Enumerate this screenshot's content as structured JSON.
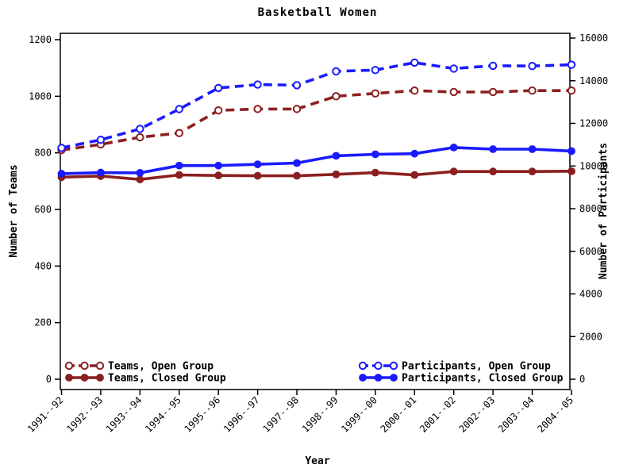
{
  "chart_data": {
    "type": "line",
    "title": "Basketball Women",
    "xlabel": "Year",
    "ylabel_left": "Number of Teams",
    "ylabel_right": "Number of Participants",
    "categories": [
      "1991--92",
      "1992--93",
      "1993--94",
      "1994--95",
      "1995--96",
      "1996--97",
      "1997--98",
      "1998--99",
      "1999--00",
      "2000--01",
      "2001--02",
      "2002--03",
      "2003--04",
      "2004--05"
    ],
    "y_left_axis": {
      "min": 0,
      "max": 1200,
      "ticks": [
        0,
        200,
        400,
        600,
        800,
        1000,
        1200
      ]
    },
    "y_right_axis": {
      "min": 0,
      "max": 16000,
      "ticks": [
        0,
        2000,
        4000,
        6000,
        8000,
        10000,
        12000,
        14000,
        16000
      ]
    },
    "grid": false,
    "colors": {
      "teams": "#8b1f1f",
      "participants": "#1a1aff",
      "axis": "#000000",
      "background": "#ffffff"
    },
    "series": [
      {
        "name": "Teams, Open Group",
        "axis": "left",
        "color": "#8b1f1f",
        "line": "dashed",
        "marker": "open",
        "values": [
          810,
          830,
          855,
          870,
          950,
          955,
          955,
          1000,
          1010,
          1020,
          1015,
          1015,
          1020,
          1020
        ]
      },
      {
        "name": "Teams, Closed Group",
        "axis": "left",
        "color": "#8b1f1f",
        "line": "solid",
        "marker": "filled",
        "values": [
          714,
          718,
          706,
          722,
          720,
          719,
          719,
          724,
          730,
          722,
          734,
          734,
          734,
          735
        ]
      },
      {
        "name": "Participants, Open Group",
        "axis": "right",
        "color": "#1a1aff",
        "line": "dashed",
        "marker": "open",
        "values": [
          10850,
          11230,
          11740,
          12670,
          13660,
          13820,
          13790,
          14440,
          14500,
          14850,
          14570,
          14700,
          14690,
          14750
        ]
      },
      {
        "name": "Participants, Closed Group",
        "axis": "right",
        "color": "#1a1aff",
        "line": "solid",
        "marker": "filled",
        "values": [
          9640,
          9690,
          9680,
          10020,
          10020,
          10080,
          10140,
          10480,
          10550,
          10580,
          10870,
          10790,
          10790,
          10700
        ]
      }
    ],
    "legend": {
      "left_group": [
        0,
        1
      ],
      "right_group": [
        2,
        3
      ],
      "position": "bottom-inside"
    }
  }
}
